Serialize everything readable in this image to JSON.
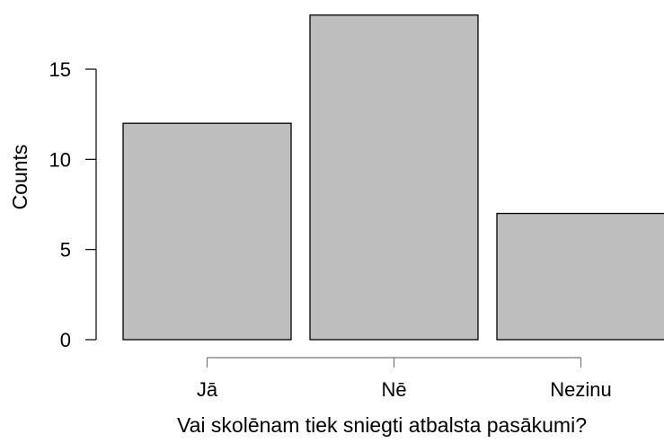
{
  "chart_data": {
    "type": "bar",
    "categories": [
      "Jā",
      "Nē",
      "Nezinu"
    ],
    "values": [
      12,
      18,
      7
    ],
    "title": "",
    "xlabel": "Vai skolēnam tiek sniegti atbalsta pasākumi?",
    "ylabel": "Counts",
    "ylim": [
      0,
      18
    ],
    "yticks": [
      0,
      5,
      10,
      15
    ],
    "grid": false,
    "legend": "none",
    "colors": {
      "bar_fill": "#bebebe",
      "bar_stroke": "#000000",
      "axis": "#000000",
      "x_axis_line": "#777777"
    }
  }
}
